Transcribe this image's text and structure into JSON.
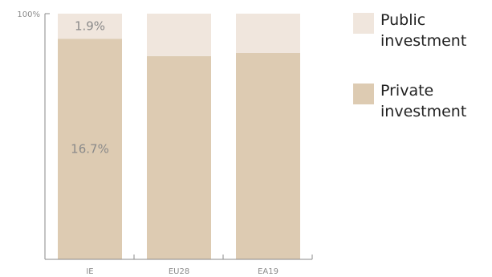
{
  "chart_data": {
    "type": "bar",
    "stacked": true,
    "normalized": true,
    "categories": [
      "IE",
      "EU28",
      "EA19"
    ],
    "series": [
      {
        "name": "Private investment",
        "color": "#ddcbb2",
        "values": [
          16.7,
          null,
          null
        ],
        "shares": [
          0.898,
          0.827,
          0.84
        ],
        "labels": [
          "16.7%",
          "",
          ""
        ]
      },
      {
        "name": "Public investment",
        "color": "#f0e6dd",
        "values": [
          1.9,
          null,
          null
        ],
        "shares": [
          0.102,
          0.173,
          0.16
        ],
        "labels": [
          "1.9%",
          "",
          ""
        ]
      }
    ],
    "y_ticks": [
      "100%"
    ],
    "ylim": [
      0,
      1
    ],
    "legend": "right",
    "grid": false,
    "title": "",
    "xlabel": "",
    "ylabel": ""
  },
  "legend": [
    {
      "label": "Public investment",
      "color": "#f0e6dd"
    },
    {
      "label": "Private investment",
      "color": "#ddcbb2"
    }
  ]
}
